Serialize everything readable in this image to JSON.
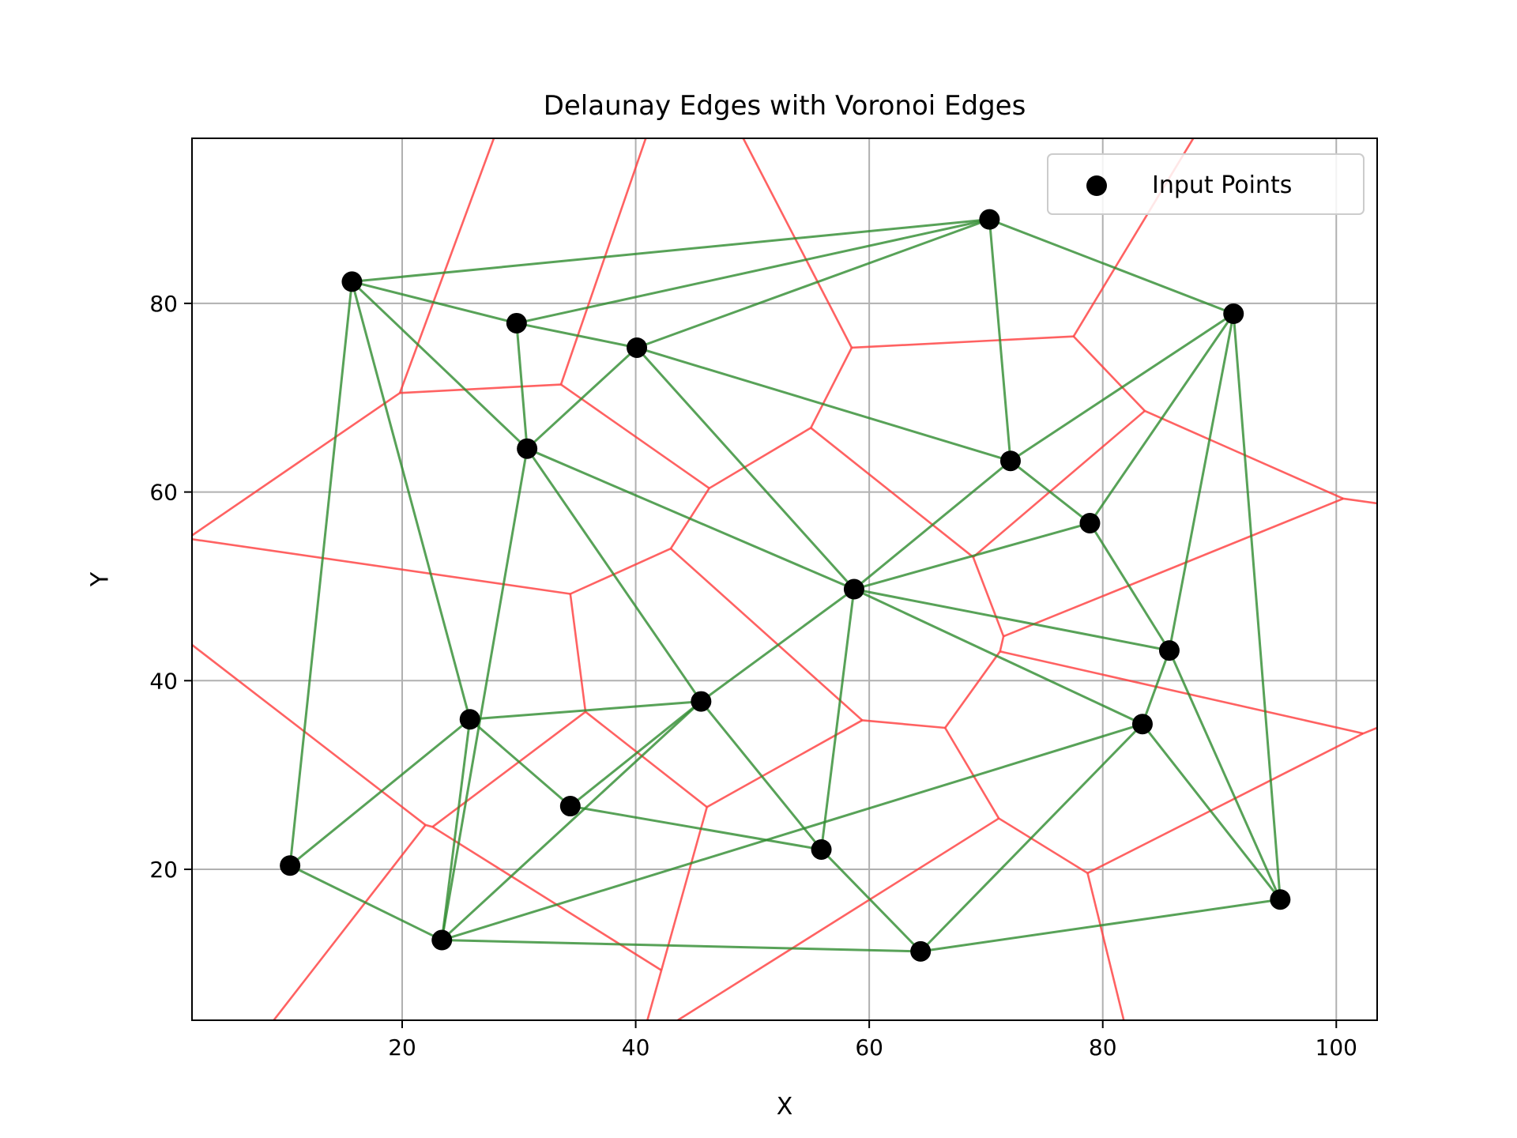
{
  "chart_data": {
    "type": "scatter",
    "title": "Delaunay Edges with Voronoi Edges",
    "xlabel": "X",
    "ylabel": "Y",
    "xlim": [
      2,
      103.5
    ],
    "ylim": [
      4,
      97.5
    ],
    "xticks": [
      20,
      40,
      60,
      80,
      100
    ],
    "yticks": [
      20,
      40,
      60,
      80
    ],
    "grid": true,
    "legend": {
      "placement": "top-right",
      "entries": [
        "Input Points"
      ]
    },
    "colors": {
      "points": "#000000",
      "delaunay": "#2e8b2e",
      "voronoi": "#ff3b3b",
      "grid": "#b0b0b0"
    },
    "points": [
      [
        15.7,
        82.3
      ],
      [
        29.8,
        77.9
      ],
      [
        40.1,
        75.3
      ],
      [
        70.3,
        88.9
      ],
      [
        91.2,
        78.9
      ],
      [
        30.7,
        64.6
      ],
      [
        72.1,
        63.3
      ],
      [
        78.9,
        56.7
      ],
      [
        58.7,
        49.7
      ],
      [
        85.7,
        43.2
      ],
      [
        25.8,
        35.9
      ],
      [
        45.6,
        37.8
      ],
      [
        83.4,
        35.4
      ],
      [
        34.4,
        26.7
      ],
      [
        55.9,
        22.1
      ],
      [
        10.4,
        20.4
      ],
      [
        95.2,
        16.8
      ],
      [
        23.4,
        12.5
      ],
      [
        64.4,
        11.3
      ]
    ],
    "delaunay_edges": [
      [
        0,
        3
      ],
      [
        0,
        1
      ],
      [
        0,
        5
      ],
      [
        0,
        10
      ],
      [
        0,
        15
      ],
      [
        1,
        3
      ],
      [
        1,
        2
      ],
      [
        1,
        5
      ],
      [
        2,
        3
      ],
      [
        2,
        5
      ],
      [
        2,
        6
      ],
      [
        2,
        8
      ],
      [
        3,
        4
      ],
      [
        3,
        6
      ],
      [
        4,
        6
      ],
      [
        4,
        7
      ],
      [
        4,
        9
      ],
      [
        4,
        16
      ],
      [
        5,
        8
      ],
      [
        5,
        11
      ],
      [
        5,
        17
      ],
      [
        6,
        7
      ],
      [
        6,
        8
      ],
      [
        7,
        8
      ],
      [
        7,
        9
      ],
      [
        8,
        9
      ],
      [
        8,
        12
      ],
      [
        8,
        11
      ],
      [
        8,
        14
      ],
      [
        9,
        12
      ],
      [
        9,
        16
      ],
      [
        10,
        11
      ],
      [
        10,
        13
      ],
      [
        10,
        15
      ],
      [
        10,
        17
      ],
      [
        11,
        13
      ],
      [
        11,
        14
      ],
      [
        11,
        17
      ],
      [
        12,
        16
      ],
      [
        12,
        18
      ],
      [
        12,
        17
      ],
      [
        13,
        14
      ],
      [
        14,
        18
      ],
      [
        15,
        17
      ],
      [
        16,
        18
      ],
      [
        17,
        18
      ]
    ],
    "voronoi_edges": [
      [
        [
          2,
          55.4
        ],
        [
          19.8,
          70.5
        ]
      ],
      [
        [
          19.8,
          70.5
        ],
        [
          28,
          98
        ]
      ],
      [
        [
          19.8,
          70.5
        ],
        [
          33.6,
          71.4
        ]
      ],
      [
        [
          33.6,
          71.4
        ],
        [
          41,
          98
        ]
      ],
      [
        [
          33.6,
          71.4
        ],
        [
          46.3,
          60.4
        ]
      ],
      [
        [
          46.3,
          60.4
        ],
        [
          43,
          54
        ]
      ],
      [
        [
          46.3,
          60.4
        ],
        [
          55,
          66.8
        ]
      ],
      [
        [
          55,
          66.8
        ],
        [
          58.5,
          75.3
        ]
      ],
      [
        [
          58.5,
          75.3
        ],
        [
          49,
          98
        ]
      ],
      [
        [
          58.5,
          75.3
        ],
        [
          77.5,
          76.5
        ]
      ],
      [
        [
          77.5,
          76.5
        ],
        [
          88,
          98
        ]
      ],
      [
        [
          77.5,
          76.5
        ],
        [
          83.6,
          68.6
        ]
      ],
      [
        [
          83.6,
          68.6
        ],
        [
          100.6,
          59.3
        ]
      ],
      [
        [
          100.6,
          59.3
        ],
        [
          103.5,
          58.8
        ]
      ],
      [
        [
          83.6,
          68.6
        ],
        [
          68.9,
          53.1
        ]
      ],
      [
        [
          55,
          66.8
        ],
        [
          68.9,
          53.1
        ]
      ],
      [
        [
          68.9,
          53.1
        ],
        [
          71.5,
          44.7
        ]
      ],
      [
        [
          71.5,
          44.7
        ],
        [
          100.6,
          59.3
        ]
      ],
      [
        [
          71.5,
          44.7
        ],
        [
          71.2,
          43.1
        ]
      ],
      [
        [
          71.2,
          43.1
        ],
        [
          102.3,
          34.4
        ]
      ],
      [
        [
          102.3,
          34.4
        ],
        [
          103.5,
          35
        ]
      ],
      [
        [
          71.2,
          43.1
        ],
        [
          66.5,
          35
        ]
      ],
      [
        [
          66.5,
          35
        ],
        [
          59.4,
          35.8
        ]
      ],
      [
        [
          59.4,
          35.8
        ],
        [
          43,
          54
        ]
      ],
      [
        [
          43,
          54
        ],
        [
          34.4,
          49.2
        ]
      ],
      [
        [
          34.4,
          49.2
        ],
        [
          2,
          55
        ]
      ],
      [
        [
          34.4,
          49.2
        ],
        [
          35.7,
          36.7
        ]
      ],
      [
        [
          35.7,
          36.7
        ],
        [
          22.6,
          24.5
        ]
      ],
      [
        [
          22.6,
          24.5
        ],
        [
          22,
          24.7
        ]
      ],
      [
        [
          22,
          24.7
        ],
        [
          2,
          43.8
        ]
      ],
      [
        [
          22,
          24.7
        ],
        [
          9,
          4
        ]
      ],
      [
        [
          22.6,
          24.5
        ],
        [
          42.2,
          9.3
        ]
      ],
      [
        [
          42.2,
          9.3
        ],
        [
          41,
          4
        ]
      ],
      [
        [
          42.2,
          9.3
        ],
        [
          46.1,
          26.6
        ]
      ],
      [
        [
          46.1,
          26.6
        ],
        [
          35.7,
          36.7
        ]
      ],
      [
        [
          46.1,
          26.6
        ],
        [
          59.4,
          35.8
        ]
      ],
      [
        [
          66.5,
          35
        ],
        [
          71.1,
          25.4
        ]
      ],
      [
        [
          71.1,
          25.4
        ],
        [
          43.6,
          4
        ]
      ],
      [
        [
          71.1,
          25.4
        ],
        [
          78.7,
          19.6
        ]
      ],
      [
        [
          78.7,
          19.6
        ],
        [
          102.3,
          34.4
        ]
      ],
      [
        [
          78.7,
          19.6
        ],
        [
          81.8,
          4
        ]
      ]
    ]
  }
}
